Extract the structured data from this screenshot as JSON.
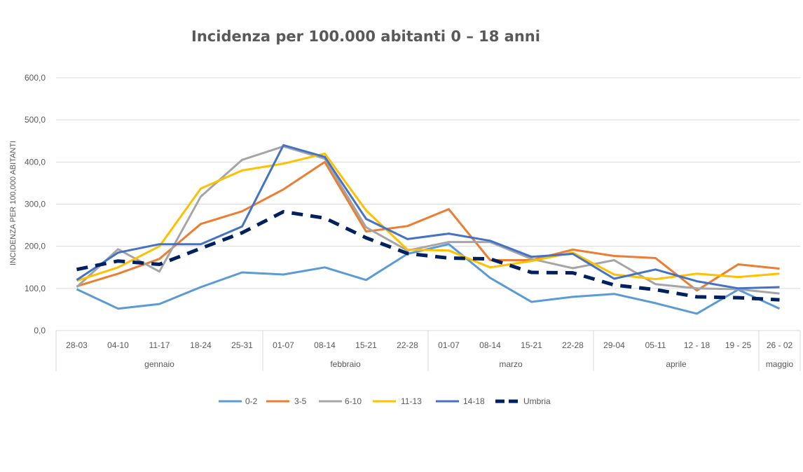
{
  "chart_data": {
    "type": "line",
    "title": "Incidenza per 100.000 abitanti 0 – 18 anni",
    "ylabel": "INCIDENZA PER 100,000 ABITANTI",
    "xlabel": "",
    "ylim": [
      0,
      600
    ],
    "yticks": [
      "0,0",
      "100,0",
      "200,0",
      "300,0",
      "400,0",
      "500,0",
      "600,0"
    ],
    "ytick_values": [
      0,
      100,
      200,
      300,
      400,
      500,
      600
    ],
    "categories": [
      "28-03",
      "04-10",
      "11-17",
      "18-24",
      "25-31",
      "01-07",
      "08-14",
      "15-21",
      "22-28",
      "01-07",
      "08-14",
      "15-21",
      "22-28",
      "29-04",
      "05-11",
      "12 - 18",
      "19 - 25",
      "26 - 02"
    ],
    "groups": [
      {
        "label": "gennaio",
        "count": 5
      },
      {
        "label": "febbraio",
        "count": 4
      },
      {
        "label": "marzo",
        "count": 4
      },
      {
        "label": "aprile",
        "count": 4
      },
      {
        "label": "maggio",
        "count": 1
      }
    ],
    "grid": "horizontal",
    "legend_position": "bottom",
    "series": [
      {
        "name": "0-2",
        "color": "#5B9BD5",
        "dashed": false,
        "values": [
          98,
          52,
          63,
          103,
          138,
          133,
          150,
          120,
          182,
          205,
          125,
          68,
          80,
          87,
          65,
          40,
          97,
          52
        ]
      },
      {
        "name": "3-5",
        "color": "#ED7D31",
        "dashed": false,
        "values": [
          105,
          135,
          170,
          253,
          283,
          335,
          400,
          235,
          248,
          288,
          167,
          167,
          192,
          177,
          172,
          95,
          157,
          147
        ]
      },
      {
        "name": "6-10",
        "color": "#A5A5A5",
        "dashed": false,
        "values": [
          103,
          193,
          140,
          318,
          405,
          437,
          408,
          245,
          190,
          210,
          210,
          170,
          148,
          167,
          110,
          100,
          98,
          88
        ]
      },
      {
        "name": "11-13",
        "color": "#FFC000",
        "dashed": false,
        "values": [
          118,
          150,
          200,
          337,
          380,
          396,
          420,
          285,
          192,
          190,
          150,
          165,
          185,
          133,
          122,
          135,
          127,
          135
        ]
      },
      {
        "name": "14-18",
        "color": "#4472C4",
        "dashed": false,
        "values": [
          120,
          185,
          205,
          205,
          247,
          440,
          412,
          265,
          217,
          230,
          213,
          175,
          182,
          123,
          145,
          117,
          100,
          103
        ]
      },
      {
        "name": "Umbria",
        "color": "#002060",
        "dashed": true,
        "values": [
          145,
          165,
          157,
          195,
          232,
          282,
          267,
          220,
          183,
          172,
          170,
          138,
          137,
          108,
          97,
          80,
          78,
          73
        ]
      }
    ]
  }
}
